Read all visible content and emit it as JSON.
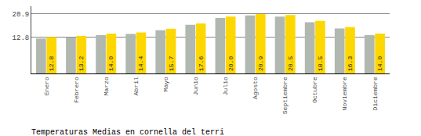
{
  "chart_data": {
    "type": "bar",
    "title": "Temperaturas Medias en cornella del terri",
    "categories": [
      "Enero",
      "Febrero",
      "Marzo",
      "Abril",
      "Mayo",
      "Junio",
      "Julio",
      "Agosto",
      "Septiembre",
      "Octubre",
      "Noviembre",
      "Diciembre"
    ],
    "series": [
      {
        "color": "#B0B8B0",
        "values": [
          12.3,
          12.7,
          13.5,
          13.9,
          15.2,
          17.1,
          19.5,
          20.4,
          20.0,
          18.0,
          15.8,
          13.5
        ]
      },
      {
        "color": "#FFD700",
        "values": [
          12.8,
          13.2,
          14.0,
          14.4,
          15.7,
          17.6,
          20.0,
          20.9,
          20.5,
          18.5,
          16.3,
          14.0
        ],
        "data_labels": true,
        "value_labels": [
          "12.8",
          "13.2",
          "14.0",
          "14.4",
          "15.7",
          "17.6",
          "20.0",
          "20.9",
          "20.5",
          "18.5",
          "16.3",
          "14.0"
        ]
      }
    ],
    "ylim": [
      0,
      23.617
    ],
    "yticks": [
      12.8,
      20.9
    ],
    "y2lim": [
      0,
      23.617
    ],
    "y2ticks": [
      12.8,
      20.9
    ],
    "grid": true
  }
}
